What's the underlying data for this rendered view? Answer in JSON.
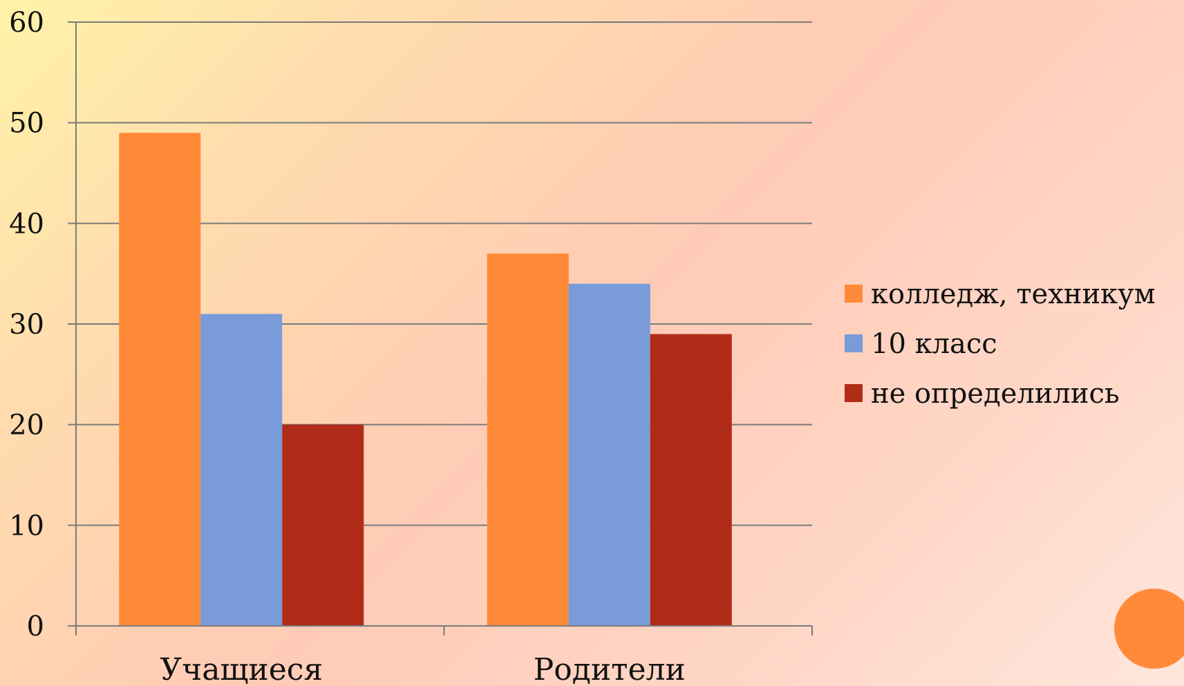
{
  "colors": {
    "series": [
      "#ff8a3a",
      "#7a9bd9",
      "#b02c18"
    ],
    "gridline": "#7a7a7a",
    "axis": "#7a7a7a",
    "decoration": "#ff8a3a"
  },
  "chart_data": {
    "type": "bar",
    "title": "",
    "xlabel": "",
    "ylabel": "",
    "categories": [
      "Учащиеся",
      "Родители"
    ],
    "series": [
      {
        "name": "колледж, техникум",
        "values": [
          49,
          37
        ]
      },
      {
        "name": "10 класс",
        "values": [
          31,
          34
        ]
      },
      {
        "name": "не определились",
        "values": [
          20,
          29
        ]
      }
    ],
    "ylim": [
      0,
      60
    ],
    "yticks": [
      "0",
      "10",
      "20",
      "30",
      "40",
      "50",
      "60"
    ],
    "grid": true,
    "legend_position": "right"
  }
}
